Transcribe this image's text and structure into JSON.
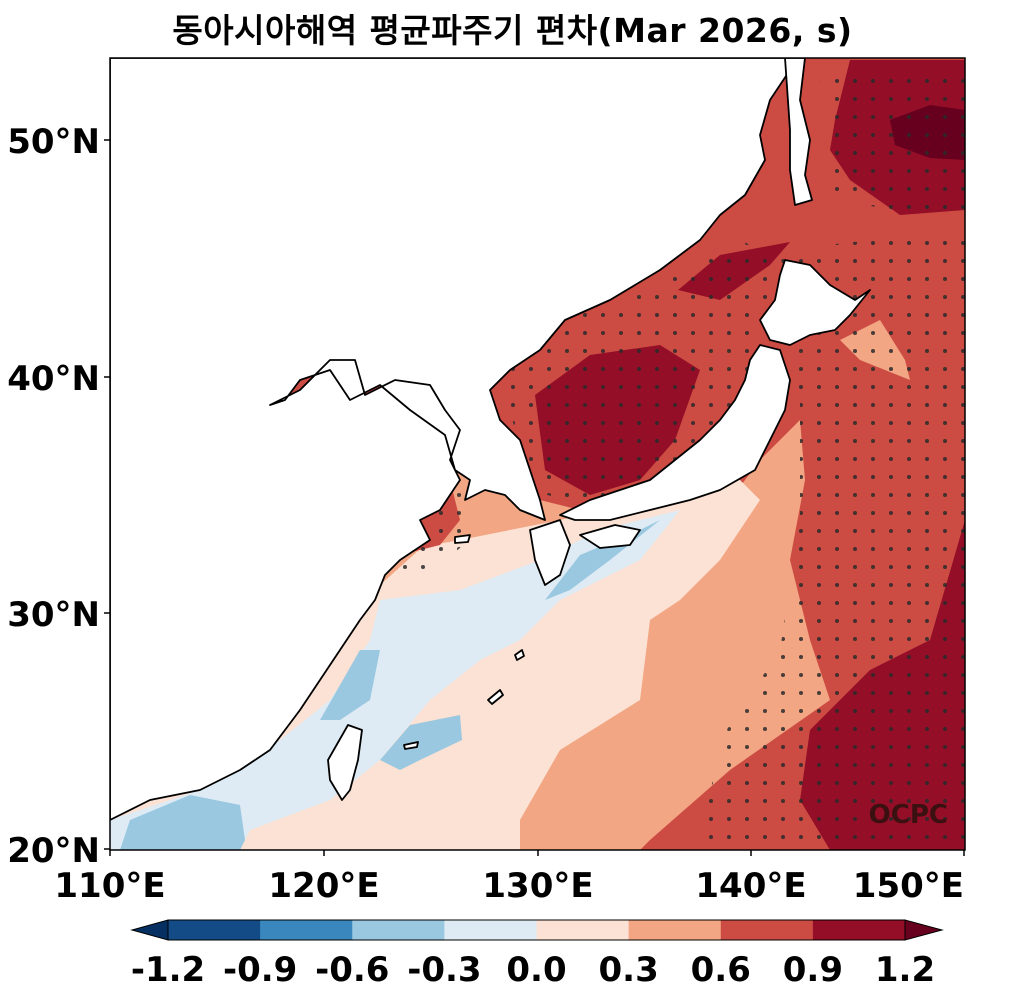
{
  "title": "동아시아해역 평균파주기 편차(Mar 2026, s)",
  "credit": "OCPC",
  "axes": {
    "lon_ticks": [
      "110°E",
      "120°E",
      "130°E",
      "140°E",
      "150°E"
    ],
    "lat_ticks": [
      "50°N",
      "40°N",
      "30°N",
      "20°N"
    ],
    "lon_range": [
      110,
      150
    ],
    "lat_range": [
      20,
      53.5
    ]
  },
  "colorbar": {
    "ticks": [
      "-1.2",
      "-0.9",
      "-0.6",
      "-0.3",
      "0.0",
      "0.3",
      "0.6",
      "0.9",
      "1.2"
    ],
    "colors": [
      "#053061",
      "#134b87",
      "#3a87bd",
      "#9ac8e0",
      "#deebf4",
      "#fbe2d4",
      "#f2a683",
      "#cc4c43",
      "#930e26",
      "#67001f"
    ],
    "extend": "both"
  },
  "legend_semantics": {
    "stippling": "significant anomaly",
    "land": "white"
  }
}
